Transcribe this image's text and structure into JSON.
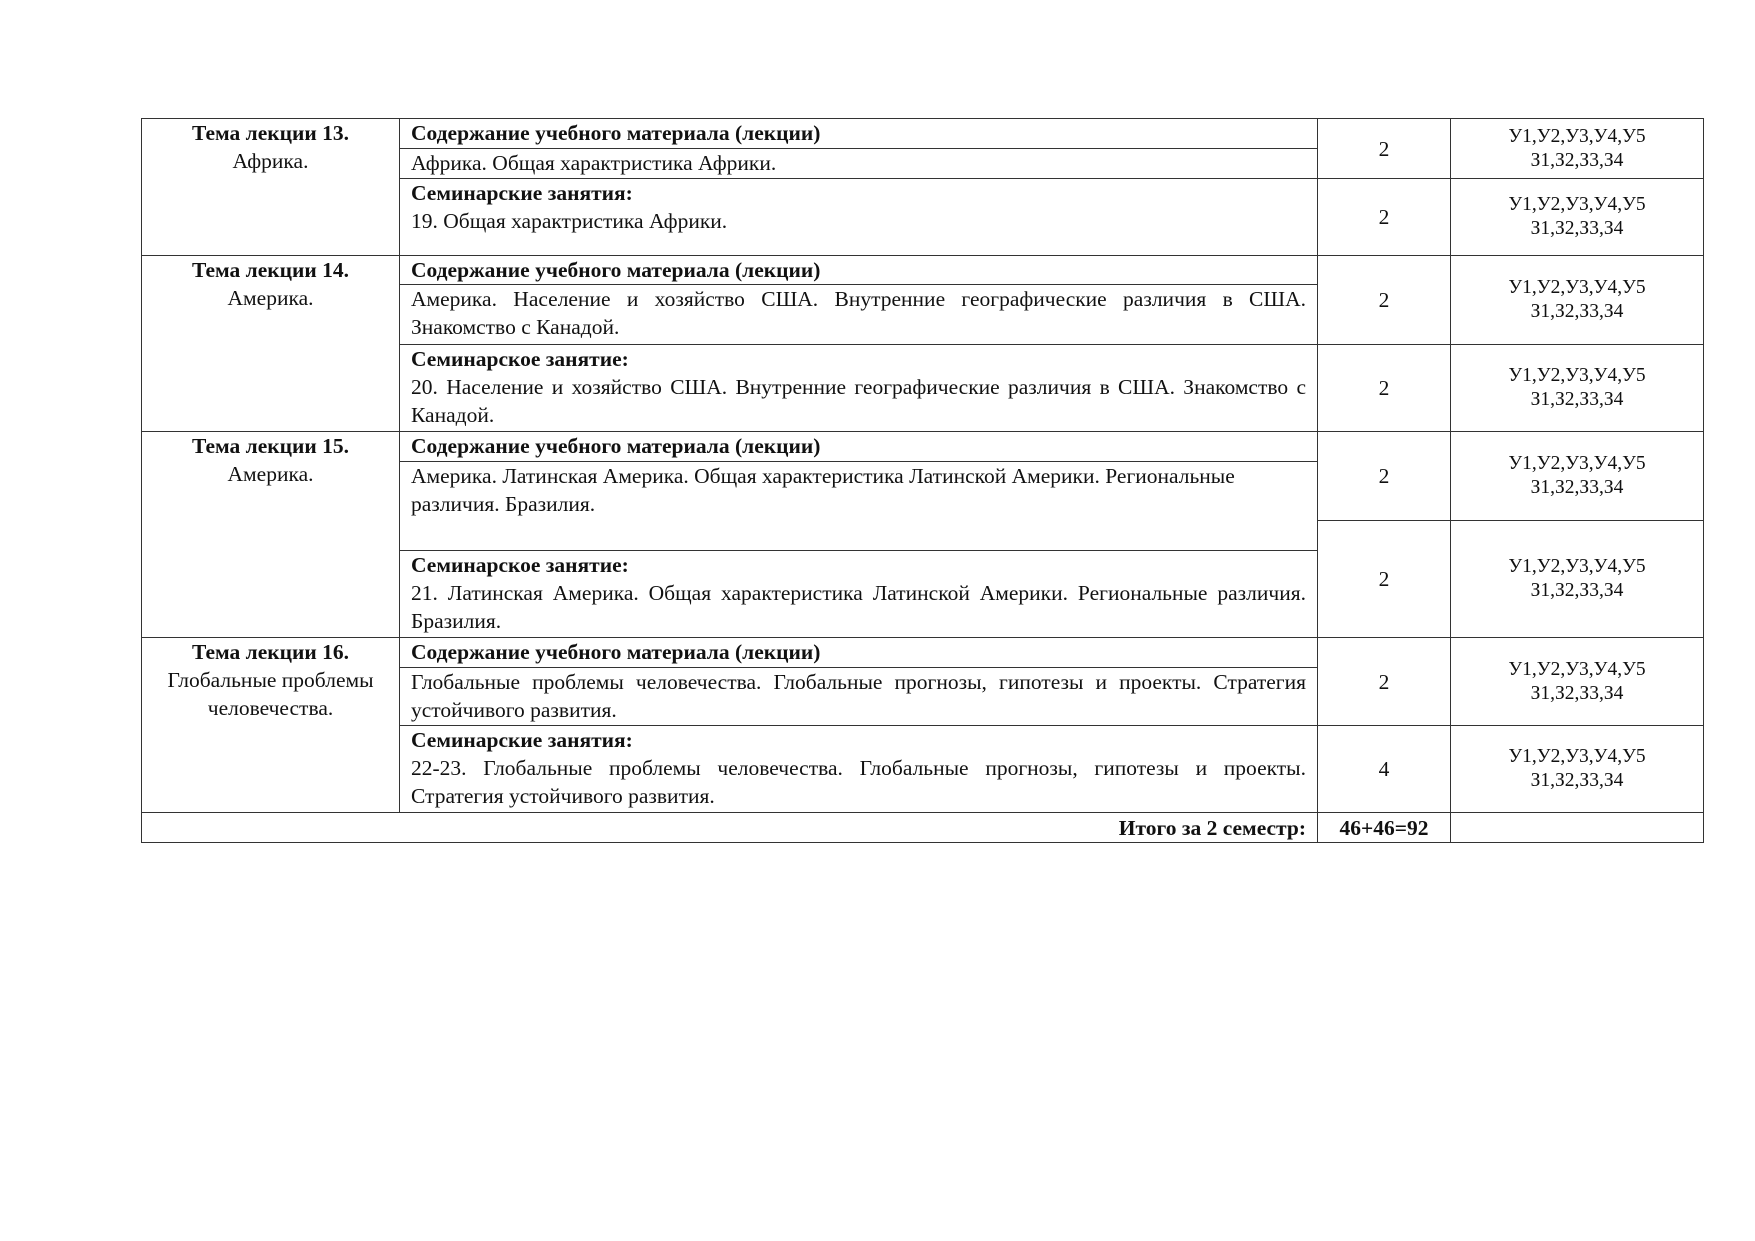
{
  "heading": "Содержание учебного материала (лекции)",
  "codes_line1": "У1,У2,У3,У4,У5",
  "codes_line2": "З1,З2,З3,З4",
  "topics": [
    {
      "title": "Тема  лекции  13.",
      "name": "Африка.",
      "lecture": "Африка.  Общая характристика Африки.",
      "lecture_hours": "2",
      "seminar_label": "Семинарские занятия:",
      "seminar": "19.  Общая характристика Африки.",
      "seminar_hours": "2"
    },
    {
      "title": "Тема  лекции  14.",
      "name": "Америка.",
      "lecture": "Америка. Население и хозяйство США.  Внутренние географические различия в США. Знакомство с Канадой.",
      "lecture_hours": "2",
      "seminar_label": "Семинарское занятие:",
      "seminar": "20.  Население и хозяйство США.  Внутренние географические различия в США. Знакомство с Канадой.",
      "seminar_hours": "2"
    },
    {
      "title": "Тема  лекции  15.",
      "name": "Америка.",
      "lecture": "Америка. Латинская Америка. Общая характеристика Латинской Америки. Региональные различия. Бразилия.",
      "lecture_hours": "2",
      "seminar_label": "Семинарское занятие:",
      "seminar": "21.  Латинская Америка. Общая характеристика Латинской Америки. Региональные различия. Бразилия.",
      "seminar_hours": "2"
    },
    {
      "title": "Тема  лекции  16.",
      "name": "Глобальные проблемы человечества.",
      "lecture": "Глобальные проблемы человечества. Глобальные прогнозы, гипотезы и проекты. Стратегия устойчивого развития.",
      "lecture_hours": "2",
      "seminar_label": "Семинарские занятия:",
      "seminar": "22-23. Глобальные проблемы человечества. Глобальные прогнозы, гипотезы и проекты. Стратегия устойчивого развития.",
      "seminar_hours": "4"
    }
  ],
  "total": {
    "label": "Итого за 2 семестр:",
    "value": "46+46=92"
  }
}
